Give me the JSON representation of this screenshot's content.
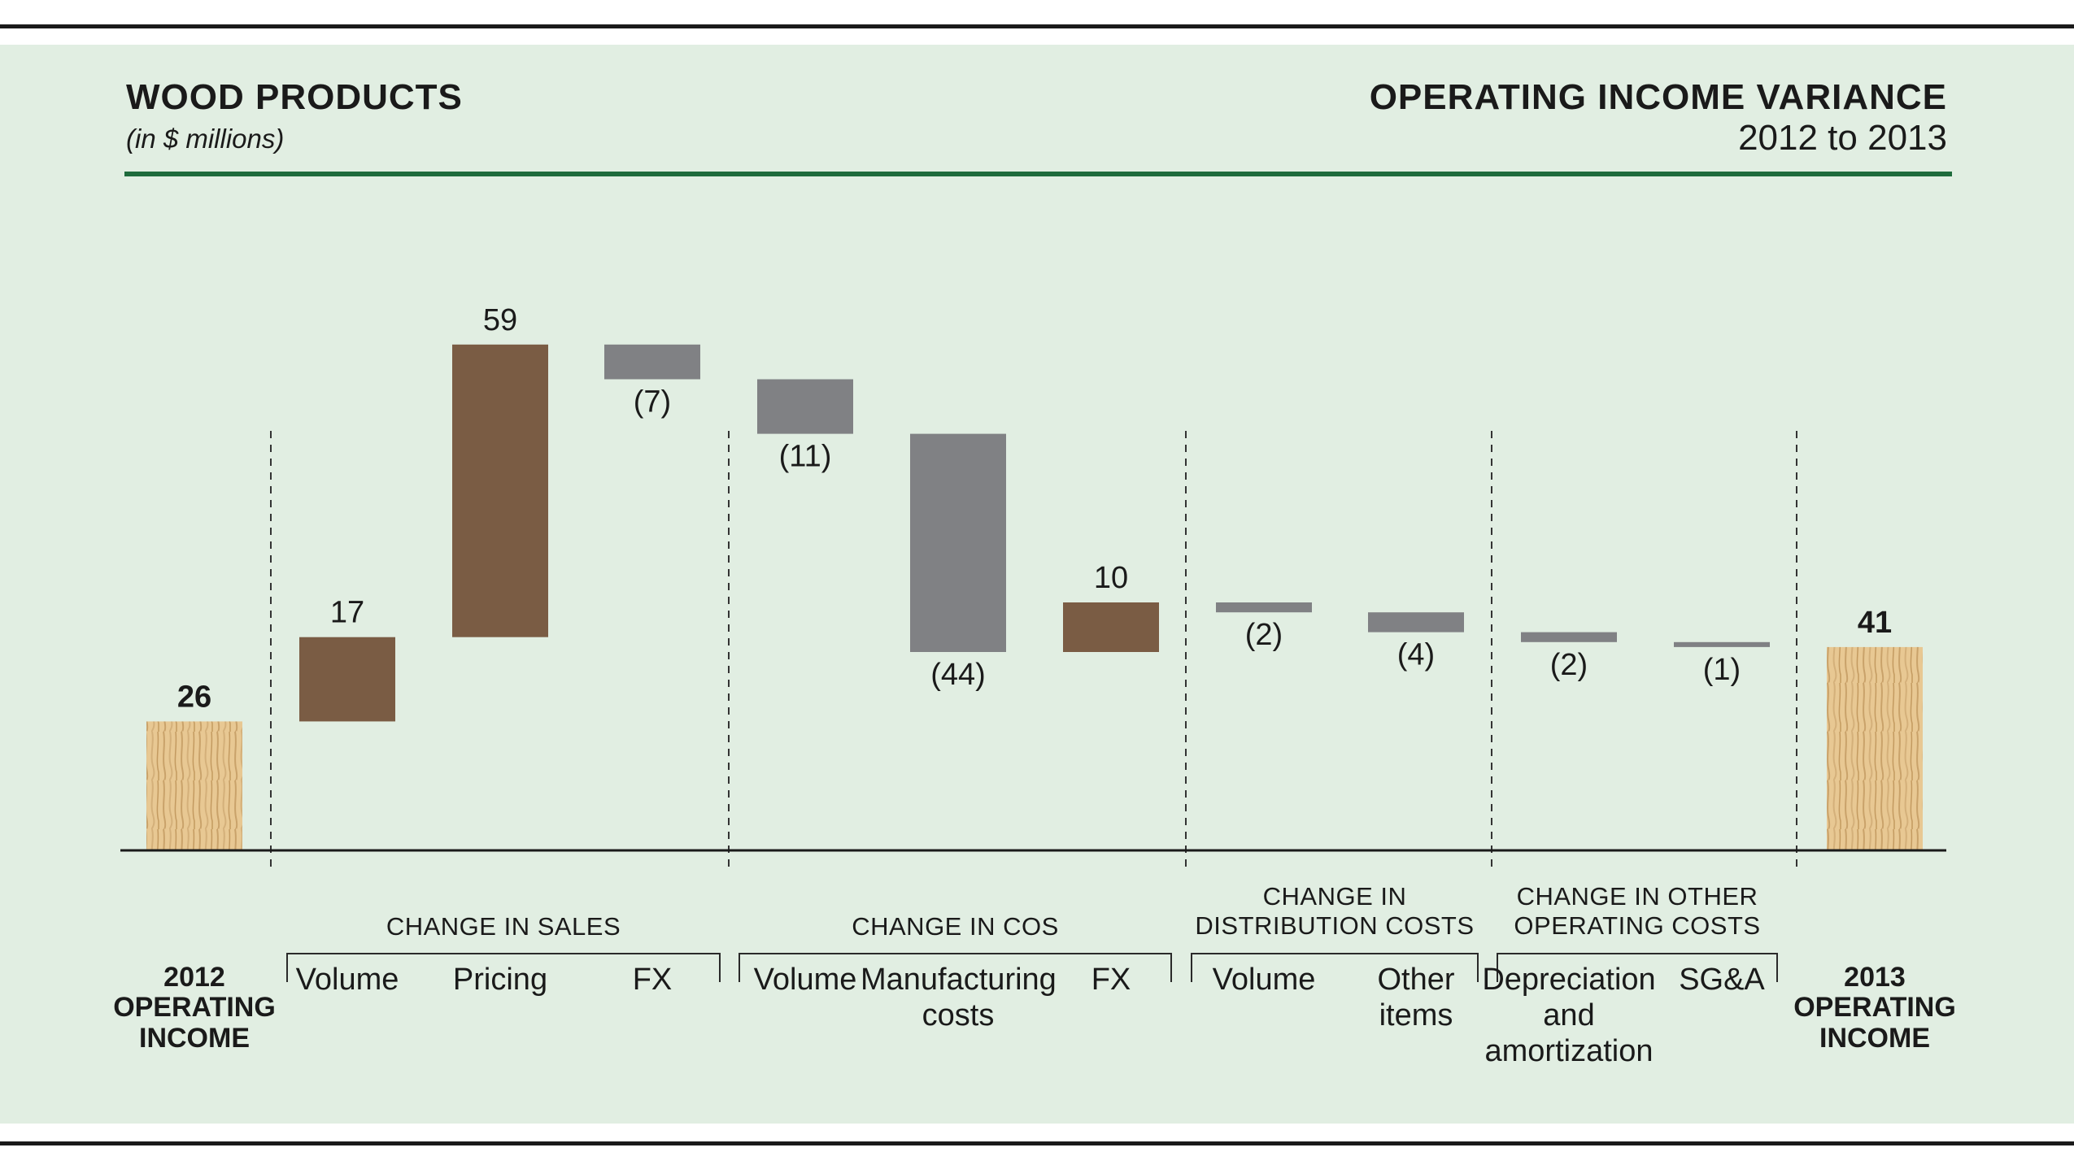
{
  "header": {
    "title": "WOOD PRODUCTS",
    "units": "(in $ millions)",
    "right_title": "OPERATING INCOME VARIANCE",
    "right_subtitle": "2012 to 2013"
  },
  "colors": {
    "background": "#e1eee2",
    "accent_rule": "#1e6b3c",
    "increase": "#7a5c44",
    "decrease": "#808184",
    "total_wood": "#e6c48c"
  },
  "groups": [
    {
      "label": "CHANGE IN SALES"
    },
    {
      "label": "CHANGE IN COS"
    },
    {
      "label": "CHANGE IN DISTRIBUTION COSTS",
      "lines": [
        "CHANGE IN",
        "DISTRIBUTION COSTS"
      ]
    },
    {
      "label": "CHANGE IN OTHER OPERATING COSTS",
      "lines": [
        "CHANGE IN OTHER",
        "OPERATING COSTS"
      ]
    }
  ],
  "chart_data": {
    "type": "waterfall",
    "title": "OPERATING INCOME VARIANCE",
    "subtitle": "2012 to 2013",
    "units": "(in $ millions)",
    "categories": [
      {
        "label": "2012 OPERATING INCOME",
        "lines": [
          "2012",
          "OPERATING",
          "INCOME"
        ],
        "kind": "total",
        "value": 26,
        "display": "26"
      },
      {
        "label": "Volume",
        "lines": [
          "Volume"
        ],
        "group": "CHANGE IN SALES",
        "kind": "delta",
        "value": 17,
        "display": "17"
      },
      {
        "label": "Pricing",
        "lines": [
          "Pricing"
        ],
        "group": "CHANGE IN SALES",
        "kind": "delta",
        "value": 59,
        "display": "59"
      },
      {
        "label": "FX",
        "lines": [
          "FX"
        ],
        "group": "CHANGE IN SALES",
        "kind": "delta",
        "value": -7,
        "display": "(7)"
      },
      {
        "label": "Volume",
        "lines": [
          "Volume"
        ],
        "group": "CHANGE IN COS",
        "kind": "delta",
        "value": -11,
        "display": "(11)"
      },
      {
        "label": "Manufacturing costs",
        "lines": [
          "Manufacturing",
          "costs"
        ],
        "group": "CHANGE IN COS",
        "kind": "delta",
        "value": -44,
        "display": "(44)"
      },
      {
        "label": "FX",
        "lines": [
          "FX"
        ],
        "group": "CHANGE IN COS",
        "kind": "delta",
        "value": 10,
        "display": "10"
      },
      {
        "label": "Volume",
        "lines": [
          "Volume"
        ],
        "group": "CHANGE IN DISTRIBUTION COSTS",
        "kind": "delta",
        "value": -2,
        "display": "(2)"
      },
      {
        "label": "Other items",
        "lines": [
          "Other",
          "items"
        ],
        "group": "CHANGE IN DISTRIBUTION COSTS",
        "kind": "delta",
        "value": -4,
        "display": "(4)"
      },
      {
        "label": "Depreciation and amortization",
        "lines": [
          "Depreciation",
          "and",
          "amortization"
        ],
        "group": "CHANGE IN OTHER OPERATING COSTS",
        "kind": "delta",
        "value": -2,
        "display": "(2)"
      },
      {
        "label": "SG&A",
        "lines": [
          "SG&A"
        ],
        "group": "CHANGE IN OTHER OPERATING COSTS",
        "kind": "delta",
        "value": -1,
        "display": "(1)"
      },
      {
        "label": "2013 OPERATING INCOME",
        "lines": [
          "2013",
          "OPERATING",
          "INCOME"
        ],
        "kind": "total",
        "value": 41,
        "display": "41"
      }
    ],
    "ylim": [
      0,
      102
    ],
    "grid": false,
    "legend": "none"
  }
}
